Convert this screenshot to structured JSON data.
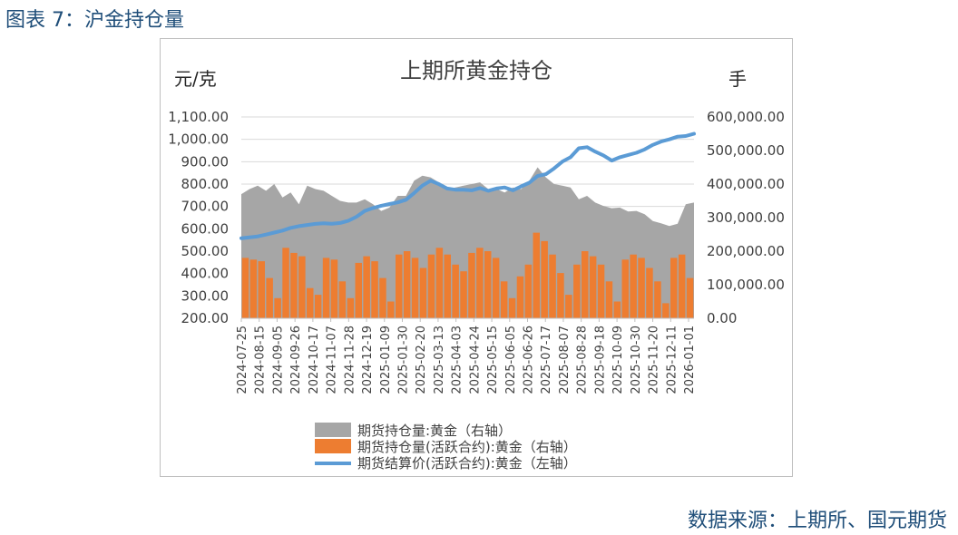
{
  "figure_title": "图表 7：沪金持仓量",
  "source": "数据来源：上期所、国元期货",
  "colors": {
    "total_oi": "#a6a6a6",
    "active_oi": "#ed7d31",
    "price": "#5b9bd5",
    "grid": "#d9d9d9",
    "axis": "#bfbfbf"
  },
  "chart_data": {
    "type": "combo",
    "title": "上期所黄金持仓",
    "y_left_label": "元/克",
    "y_right_label": "手",
    "y_left_range": [
      200,
      1100
    ],
    "y_left_ticks": [
      "1,100.00",
      "1,000.00",
      "900.00",
      "800.00",
      "700.00",
      "600.00",
      "500.00",
      "400.00",
      "300.00",
      "200.00"
    ],
    "y_right_range": [
      0,
      600000
    ],
    "y_right_ticks": [
      "600,000.00",
      "500,000.00",
      "400,000.00",
      "300,000.00",
      "200,000.00",
      "100,000.00",
      "0.00"
    ],
    "x_ticks": [
      "2024-07-25",
      "2024-08-15",
      "2024-09-05",
      "2024-09-26",
      "2024-10-17",
      "2024-11-07",
      "2024-11-28",
      "2024-12-19",
      "2025-01-09",
      "2025-01-30",
      "2025-02-20",
      "2025-03-13",
      "2025-04-03",
      "2025-04-24",
      "2025-05-15",
      "2025-06-05",
      "2025-06-26",
      "2025-07-17",
      "2025-08-07",
      "2025-08-28",
      "2025-09-18",
      "2025-10-09",
      "2025-10-30",
      "2025-11-20",
      "2025-12-11",
      "2026-01-01"
    ],
    "legend_position": "bottom",
    "grid": true,
    "series": [
      {
        "name": "期货持仓量:黄金（右轴）",
        "type": "area",
        "axis": "right",
        "values": [
          370000,
          385000,
          395000,
          380000,
          400000,
          360000,
          375000,
          340000,
          395000,
          385000,
          380000,
          365000,
          350000,
          345000,
          345000,
          355000,
          340000,
          320000,
          330000,
          365000,
          365000,
          410000,
          425000,
          420000,
          405000,
          385000,
          390000,
          395000,
          400000,
          405000,
          385000,
          385000,
          375000,
          390000,
          385000,
          410000,
          450000,
          420000,
          400000,
          395000,
          390000,
          355000,
          365000,
          345000,
          335000,
          328000,
          330000,
          318000,
          320000,
          310000,
          290000,
          283000,
          275000,
          282000,
          340000,
          345000
        ]
      },
      {
        "name": "期货持仓量(活跃合约):黄金（右轴）",
        "type": "bar",
        "axis": "right",
        "values": [
          180000,
          175000,
          170000,
          120000,
          60000,
          210000,
          195000,
          185000,
          90000,
          70000,
          180000,
          175000,
          110000,
          60000,
          165000,
          185000,
          170000,
          120000,
          50000,
          190000,
          200000,
          180000,
          150000,
          190000,
          210000,
          190000,
          160000,
          140000,
          195000,
          210000,
          200000,
          180000,
          110000,
          60000,
          125000,
          160000,
          255000,
          230000,
          190000,
          135000,
          70000,
          160000,
          200000,
          185000,
          160000,
          110000,
          50000,
          175000,
          190000,
          180000,
          150000,
          110000,
          45000,
          180000,
          190000,
          120000
        ]
      },
      {
        "name": "期货结算价(活跃合约):黄金（左轴）",
        "type": "line",
        "axis": "left",
        "values": [
          558,
          562,
          566,
          574,
          583,
          592,
          604,
          612,
          617,
          622,
          625,
          623,
          626,
          636,
          654,
          680,
          693,
          703,
          711,
          718,
          730,
          760,
          793,
          815,
          800,
          780,
          775,
          775,
          772,
          782,
          770,
          780,
          785,
          772,
          790,
          806,
          836,
          844,
          870,
          900,
          920,
          960,
          965,
          945,
          928,
          905,
          920,
          930,
          940,
          955,
          975,
          990,
          1000,
          1012,
          1015,
          1025
        ]
      }
    ]
  }
}
